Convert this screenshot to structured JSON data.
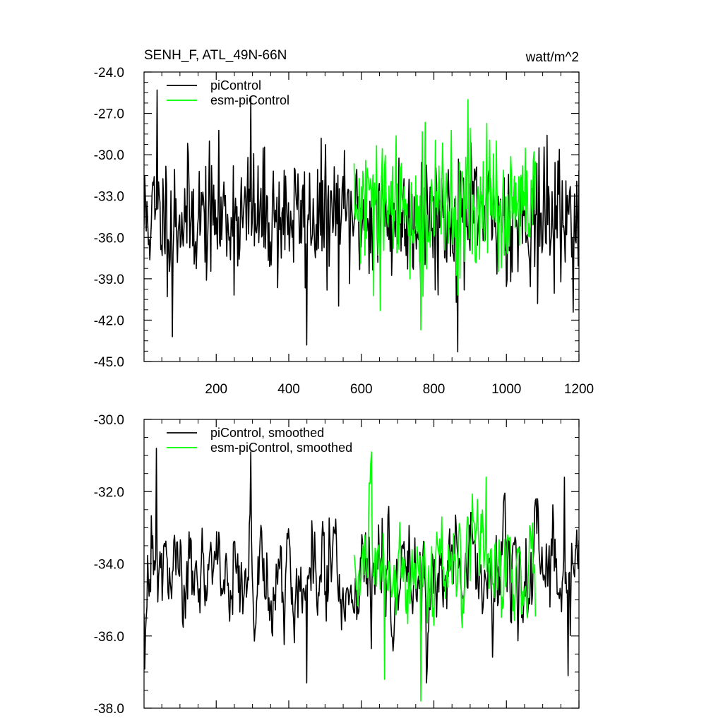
{
  "figure": {
    "title_left": "SENH_F, ATL_49N-66N",
    "title_right": "watt/m^2"
  },
  "chart_data": [
    {
      "type": "line",
      "xlim": [
        1,
        1200
      ],
      "ylim": [
        -45,
        -24
      ],
      "yticks": [
        -45,
        -42,
        -39,
        -36,
        -33,
        -30,
        -27,
        -24
      ],
      "ytick_labels": [
        "-45.0",
        "-42.0",
        "-39.0",
        "-36.0",
        "-33.0",
        "-30.0",
        "-27.0",
        "-24.0"
      ],
      "xticks": [
        200,
        400,
        600,
        800,
        1000,
        1200
      ],
      "xtick_labels": [
        "200",
        "400",
        "600",
        "800",
        "1000",
        "1200"
      ],
      "legend_position": "top-left",
      "colors": {
        "piControl": "#000000",
        "esm": "#00ff00"
      },
      "series": [
        {
          "name": "piControl",
          "x_start": 1,
          "x_end": 1200,
          "mean": -34.5,
          "spread": 2.3,
          "seed": 11,
          "features": [
            [
              80,
              -43.2
            ],
            [
              38,
              -25.3
            ],
            [
              295,
              -25.8
            ],
            [
              450,
              -43.8
            ],
            [
              865,
              -44.3
            ],
            [
              1085,
              -40.8
            ]
          ]
        },
        {
          "name": "esm-piControl",
          "x_start": 580,
          "x_end": 1080,
          "mean": -34.0,
          "spread": 2.4,
          "seed": 29,
          "features": [
            [
              895,
              -26.0
            ],
            [
              765,
              -42.7
            ],
            [
              652,
              -41.3
            ]
          ]
        }
      ]
    },
    {
      "type": "line",
      "xlim": [
        1,
        1200
      ],
      "ylim": [
        -38,
        -30
      ],
      "yticks": [
        -38,
        -36,
        -34,
        -32,
        -30
      ],
      "ytick_labels": [
        "-38.0",
        "-36.0",
        "-34.0",
        "-32.0",
        "-30.0"
      ],
      "xticks": [
        200,
        400,
        600,
        800,
        1000,
        1200
      ],
      "xtick_labels": [],
      "legend_position": "top-left",
      "colors": {
        "piControl": "#000000",
        "esm": "#00ff00"
      },
      "series": [
        {
          "name": "piControl, smoothed",
          "x_start": 1,
          "x_end": 1200,
          "mean": -34.4,
          "spread": 0.85,
          "seed": 47,
          "features": [
            [
              35,
              -30.8
            ],
            [
              295,
              -30.9
            ],
            [
              450,
              -37.3
            ],
            [
              780,
              -37.3
            ],
            [
              1170,
              -37.1
            ],
            [
              1160,
              -31.6
            ]
          ]
        },
        {
          "name": "esm-piControl, smoothed",
          "x_start": 580,
          "x_end": 1080,
          "mean": -34.1,
          "spread": 0.85,
          "seed": 83,
          "features": [
            [
              765,
              -37.8
            ],
            [
              665,
              -37.2
            ],
            [
              945,
              -31.6
            ]
          ]
        }
      ]
    }
  ]
}
